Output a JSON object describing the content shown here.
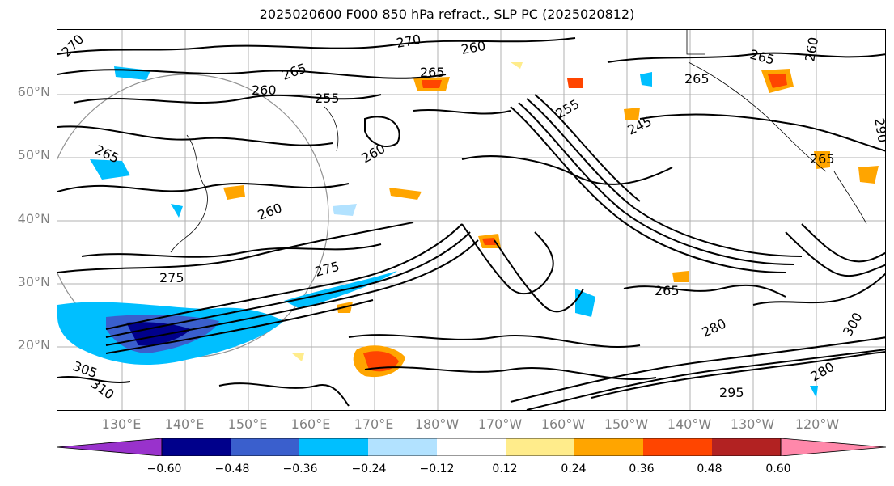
{
  "title": "2025020600 F000 850 hPa refract., SLP PC (2025020812)",
  "lat_labels": [
    "60°N",
    "50°N",
    "40°N",
    "30°N",
    "20°N"
  ],
  "lon_labels": [
    "130°E",
    "140°E",
    "150°E",
    "160°E",
    "170°E",
    "180°W",
    "170°W",
    "160°W",
    "150°W",
    "140°W",
    "130°W",
    "120°W"
  ],
  "contour_labels": [
    "270",
    "260",
    "265",
    "255",
    "270",
    "265",
    "260",
    "255",
    "260",
    "245",
    "265",
    "265",
    "260",
    "265",
    "260",
    "275",
    "275",
    "265",
    "265",
    "290",
    "305",
    "310",
    "280",
    "295",
    "280",
    "300"
  ],
  "colorbar": {
    "ticks": [
      "−0.60",
      "−0.48",
      "−0.36",
      "−0.24",
      "−0.12",
      "0.12",
      "0.24",
      "0.36",
      "0.48",
      "0.60"
    ],
    "colors": [
      "#9932CC",
      "#00008B",
      "#3A5FCD",
      "#00BFFF",
      "#B2E2FF",
      "#FFFFFF",
      "#FFEC8B",
      "#FFA500",
      "#FF4500",
      "#B22222",
      "#FF88AA"
    ]
  }
}
